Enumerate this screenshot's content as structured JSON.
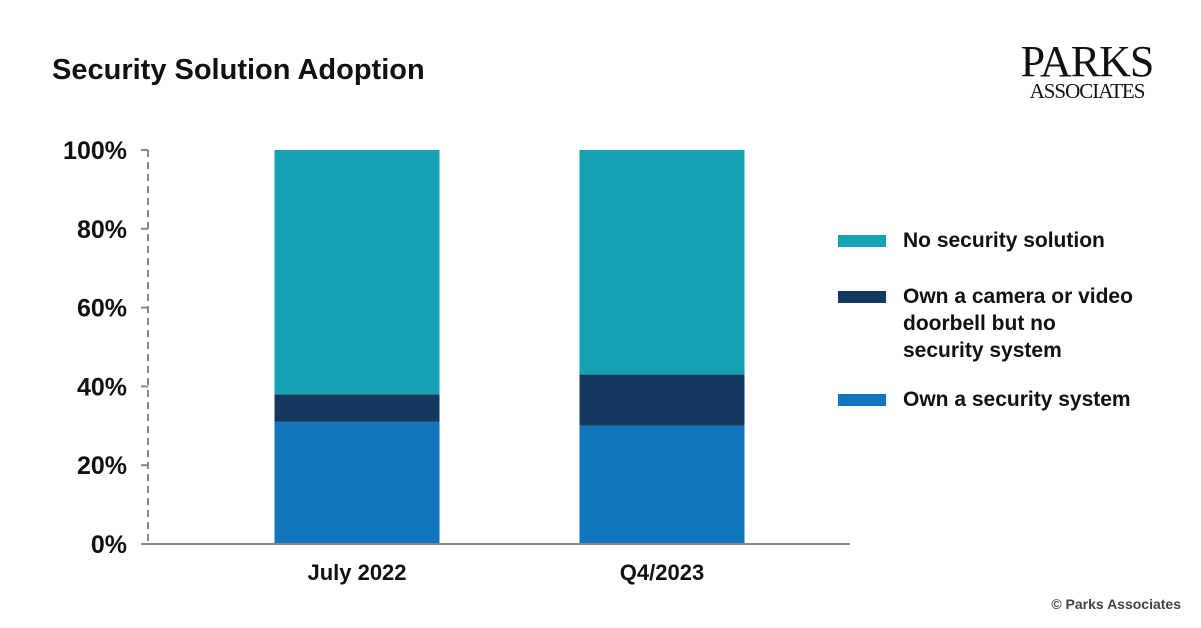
{
  "logo": {
    "line1": "PARKS",
    "line2": "ASSOCIATES"
  },
  "copyright": "© Parks Associates",
  "colors": {
    "no_security": "#17A2B3",
    "camera_only": "#15385E",
    "security_system": "#1176BD",
    "axis": "#888888"
  },
  "chart_data": {
    "type": "bar",
    "stacked": true,
    "title": "Security Solution Adoption",
    "xlabel": "",
    "ylabel": "",
    "ylim": [
      0,
      100
    ],
    "yticks": [
      0,
      20,
      40,
      60,
      80,
      100
    ],
    "ytick_labels": [
      "0%",
      "20%",
      "40%",
      "60%",
      "80%",
      "100%"
    ],
    "categories": [
      "July 2022",
      "Q4/2023"
    ],
    "series": [
      {
        "name": "Own a security system",
        "color": "#1176BD",
        "values": [
          31,
          30
        ]
      },
      {
        "name": "Own a camera or video doorbell but no security system",
        "color": "#15385E",
        "values": [
          7,
          13
        ]
      },
      {
        "name": "No security solution",
        "color": "#17A2B3",
        "values": [
          62,
          57
        ]
      }
    ],
    "legend": [
      {
        "label": "No security solution",
        "color": "#17A2B3"
      },
      {
        "label": "Own a camera or video doorbell but no security system",
        "color": "#15385E"
      },
      {
        "label": "Own a security system",
        "color": "#1176BD"
      }
    ],
    "legend_position": "right",
    "grid": false
  }
}
